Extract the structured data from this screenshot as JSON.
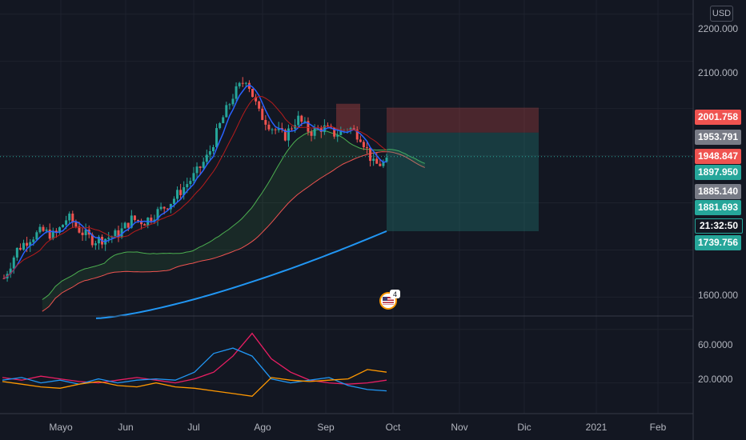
{
  "currency": "USD",
  "colors": {
    "background": "#131722",
    "bull": "#26a69a",
    "bear": "#ef5350",
    "ma_fast": "#2962ff",
    "ma_200": "#2196f3",
    "cloud_green": "#4caf50",
    "cloud_red": "#ef5350",
    "adx_pink": "#e91e63",
    "di_blue": "#2196f3",
    "di_orange": "#ff9800"
  },
  "price_axis": [
    "2200.000",
    "2100.000",
    "1600.000"
  ],
  "oscillator_axis": [
    "60.0000",
    "20.0000"
  ],
  "time_axis": [
    "Mayo",
    "Jun",
    "Jul",
    "Ago",
    "Sep",
    "Oct",
    "Nov",
    "Dic",
    "2021",
    "Feb"
  ],
  "price_tags": [
    {
      "label": "2001.758",
      "color": "#ef5350"
    },
    {
      "label": "1953.791",
      "color": "#787b86"
    },
    {
      "label": "1948.847",
      "color": "#ef5350"
    },
    {
      "label": "1897.950",
      "color": "#26a69a"
    },
    {
      "label": "1885.140",
      "color": "#787b86"
    },
    {
      "label": "1881.693",
      "color": "#26a69a"
    },
    {
      "label": "21:32:50",
      "color": "#131722"
    },
    {
      "label": "1739.756",
      "color": "#26a69a"
    }
  ],
  "event_marker": {
    "icon": "us-flag-icon",
    "count": "4"
  },
  "chart_data": [
    {
      "type": "candlestick",
      "title": "",
      "ylim": [
        1560,
        2230
      ],
      "x": [
        "Mayo",
        "Jun",
        "Jul",
        "Ago",
        "Sep",
        "Oct"
      ],
      "close_path_points": [
        1640,
        1700,
        1725,
        1740,
        1730,
        1770,
        1740,
        1720,
        1725,
        1735,
        1765,
        1760,
        1780,
        1800,
        1830,
        1860,
        1900,
        1970,
        2030,
        2065,
        1990,
        1960,
        1940,
        1980,
        1950,
        1960,
        1945,
        1960,
        1940,
        1880,
        1885
      ],
      "last_close": 1885.14,
      "ma_200_end": 1740,
      "position": {
        "stop_loss": 2001.758,
        "entry": 1948.847,
        "take_profit": 1739.756
      }
    },
    {
      "type": "line",
      "ylim": [
        0,
        70
      ],
      "series": [
        {
          "values": [
            24,
            22,
            25,
            23,
            21,
            20,
            22,
            24,
            22,
            20,
            23,
            28,
            40,
            57,
            38,
            28,
            22,
            20,
            19,
            20,
            22
          ]
        },
        {
          "values": [
            22,
            24,
            20,
            22,
            19,
            23,
            20,
            22,
            23,
            22,
            28,
            42,
            46,
            40,
            23,
            20,
            22,
            24,
            18,
            15,
            14
          ]
        },
        {
          "values": [
            21,
            19,
            17,
            16,
            19,
            21,
            18,
            17,
            20,
            17,
            16,
            14,
            12,
            10,
            24,
            22,
            21,
            22,
            23,
            30,
            28
          ]
        }
      ]
    }
  ]
}
